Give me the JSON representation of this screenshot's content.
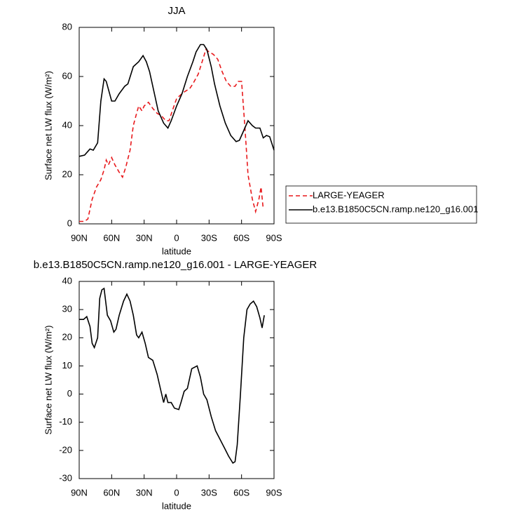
{
  "chart_data": [
    {
      "type": "line",
      "title": "JJA",
      "xlabel": "latitude",
      "ylabel": "Surface net LW flux (W/m²)",
      "xlim": [
        90,
        -90
      ],
      "xticks": [
        {
          "value": 90,
          "label": "90N"
        },
        {
          "value": 60,
          "label": "60N"
        },
        {
          "value": 30,
          "label": "30N"
        },
        0,
        {
          "value": -30,
          "label": "30S"
        },
        {
          "value": -60,
          "label": "60S"
        },
        {
          "value": -90,
          "label": "90S"
        }
      ],
      "ylim": [
        0,
        80
      ],
      "yticks": [
        0,
        20,
        40,
        60,
        80
      ],
      "legend": "right",
      "series": [
        {
          "name": "LARGE-YEAGER",
          "color": "#e8191c",
          "dashed": true,
          "x": [
            90,
            85,
            82,
            78,
            74,
            70,
            67,
            65,
            63,
            60,
            57,
            53,
            50,
            47,
            43,
            40,
            37,
            35,
            32,
            30,
            26,
            22,
            18,
            14,
            10,
            7,
            4,
            0,
            -5,
            -8,
            -12,
            -15,
            -20,
            -25,
            -27,
            -30,
            -34,
            -38,
            -42,
            -46,
            -50,
            -54,
            -57,
            -60,
            -63,
            -66,
            -70,
            -73,
            -76,
            -78,
            -80
          ],
          "values": [
            1,
            1,
            2,
            10,
            15,
            18,
            22,
            26,
            24,
            27,
            24,
            21,
            19,
            23,
            30,
            40,
            45,
            48,
            46,
            48,
            49.5,
            47,
            45,
            44,
            42,
            42,
            46,
            51,
            53,
            54,
            55,
            57,
            61,
            68,
            71,
            70,
            69,
            67,
            62,
            58,
            56,
            56,
            58,
            58,
            40,
            20,
            10,
            5,
            10,
            15,
            6
          ]
        },
        {
          "name": "b.e13.B1850C5CN.ramp.ne120_g16.001",
          "color": "#000000",
          "dashed": false,
          "x": [
            90,
            85,
            80,
            77,
            73,
            70,
            67,
            65,
            60,
            57,
            53,
            48,
            45,
            40,
            35,
            31,
            28,
            25,
            20,
            17,
            12,
            8,
            5,
            0,
            -5,
            -10,
            -15,
            -18,
            -22,
            -25,
            -28,
            -32,
            -35,
            -40,
            -45,
            -50,
            -55,
            -58,
            -62,
            -66,
            -70,
            -73,
            -77,
            -80,
            -83,
            -86,
            -90
          ],
          "values": [
            27.5,
            28,
            30.5,
            30,
            33,
            50,
            59,
            58,
            50,
            50,
            53,
            56,
            57,
            64,
            66,
            68.5,
            66,
            62,
            52,
            46,
            41,
            39,
            42,
            48,
            53,
            60,
            66,
            70,
            73,
            73,
            71,
            64,
            57,
            48,
            41,
            36,
            33.5,
            34,
            38,
            42,
            40,
            39,
            39,
            35,
            36,
            35.5,
            30
          ]
        }
      ]
    },
    {
      "type": "line",
      "title": "b.e13.B1850C5CN.ramp.ne120_g16.001 - LARGE-YEAGER",
      "xlabel": "latitude",
      "ylabel": "Surface net LW flux (W/m²)",
      "xlim": [
        90,
        -90
      ],
      "xticks": [
        {
          "value": 90,
          "label": "90N"
        },
        {
          "value": 60,
          "label": "60N"
        },
        {
          "value": 30,
          "label": "30N"
        },
        0,
        {
          "value": -30,
          "label": "30S"
        },
        {
          "value": -60,
          "label": "60S"
        },
        {
          "value": -90,
          "label": "90S"
        }
      ],
      "ylim": [
        -30,
        40
      ],
      "yticks": [
        -30,
        -20,
        -10,
        0,
        10,
        20,
        30,
        40
      ],
      "series": [
        {
          "color": "#000000",
          "dashed": false,
          "x": [
            90,
            86,
            83,
            80,
            78,
            76,
            73,
            71,
            69,
            67,
            64,
            61,
            58,
            56,
            53,
            49,
            46,
            43,
            40,
            37,
            35,
            32,
            29,
            26,
            22,
            18,
            15,
            12,
            10,
            8,
            5,
            2,
            -2,
            -4,
            -7,
            -10,
            -14,
            -19,
            -22,
            -25,
            -28,
            -32,
            -36,
            -40,
            -44,
            -48,
            -52,
            -54,
            -56,
            -59,
            -62,
            -65,
            -68,
            -71,
            -74,
            -77,
            -79,
            -81
          ],
          "values": [
            26.5,
            26.5,
            27.5,
            24,
            18,
            16.5,
            20,
            34,
            37,
            37.5,
            28,
            26,
            22,
            23,
            28,
            33,
            35.5,
            33,
            28,
            21,
            20,
            22,
            18,
            13,
            12,
            7,
            2,
            -3,
            0,
            -3,
            -3,
            -5,
            -5.5,
            -3,
            1,
            2,
            9,
            10,
            6,
            0,
            -2,
            -8,
            -13,
            -16,
            -19,
            -22,
            -24.5,
            -24,
            -18,
            0,
            20,
            30,
            32,
            33,
            31,
            27,
            23.5,
            28
          ]
        }
      ]
    }
  ]
}
